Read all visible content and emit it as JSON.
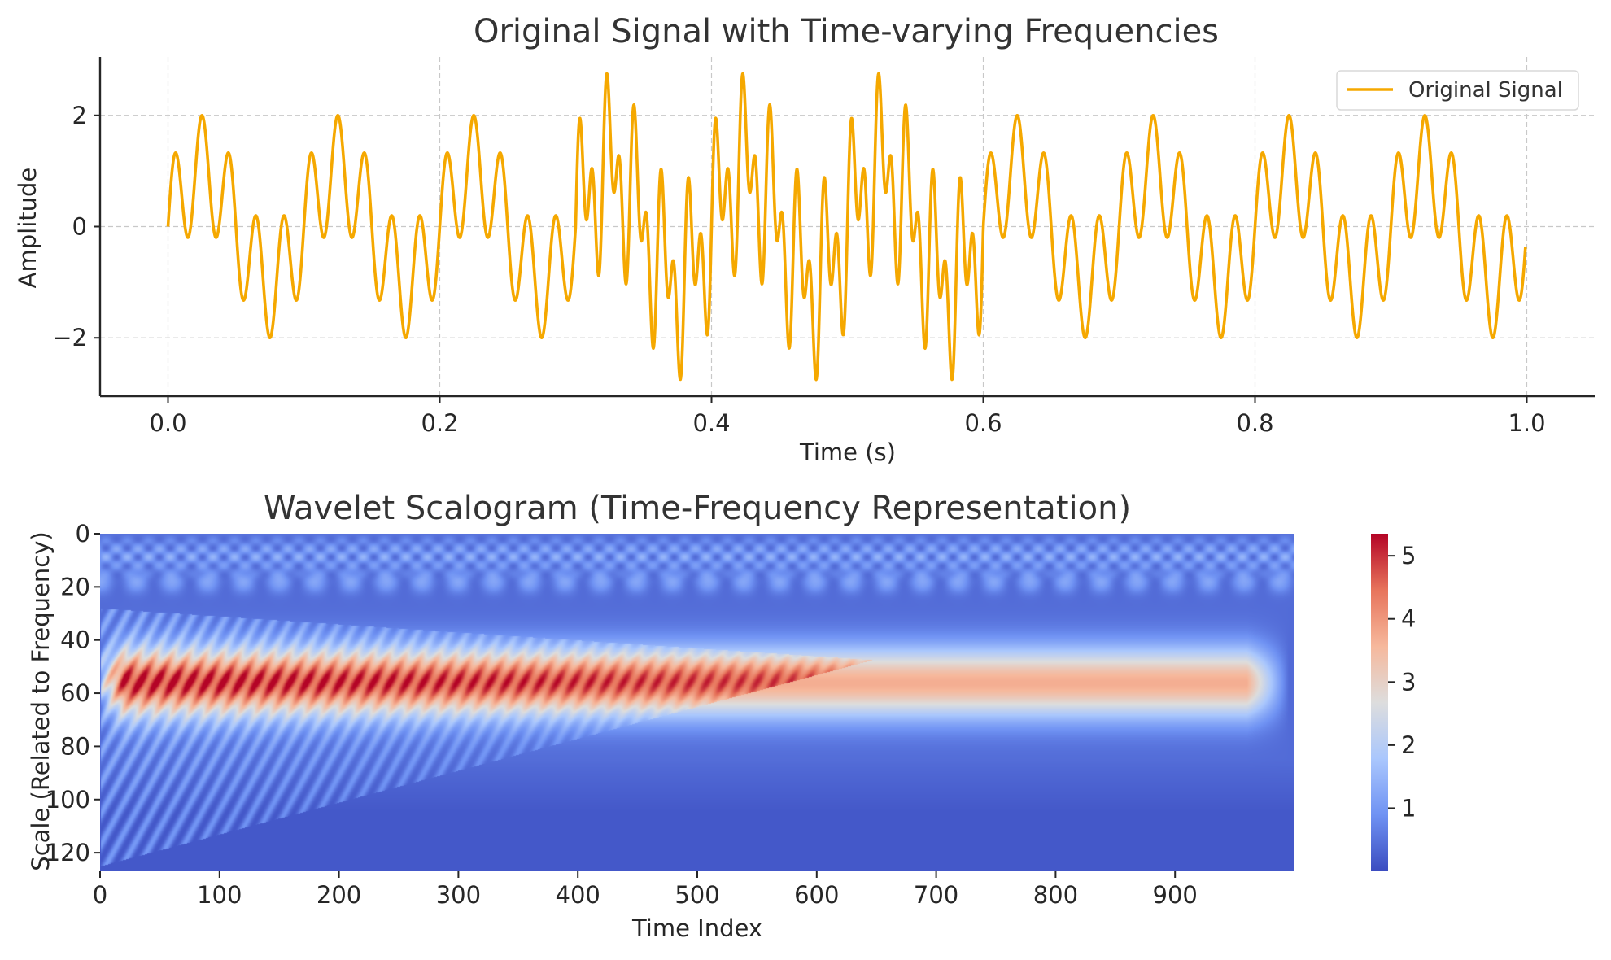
{
  "chart_data": [
    {
      "type": "line",
      "title": "Original Signal with Time-varying Frequencies",
      "xlabel": "Time (s)",
      "ylabel": "Amplitude",
      "xlim": [
        -0.05,
        1.05
      ],
      "ylim": [
        -3.05,
        3.05
      ],
      "xticks": [
        0.0,
        0.2,
        0.4,
        0.6,
        0.8,
        1.0
      ],
      "xtick_labels": [
        "0.0",
        "0.2",
        "0.4",
        "0.6",
        "0.8",
        "1.0"
      ],
      "yticks": [
        -2,
        0,
        2
      ],
      "ytick_labels": [
        "−2",
        "0",
        "2"
      ],
      "grid": true,
      "legend": "top-right",
      "series": [
        {
          "name": "Original Signal",
          "color": "#f5a800",
          "t_start": 0.0,
          "t_end": 0.999,
          "base_components": [
            {
              "frequency_hz": 10,
              "amplitude": 1
            },
            {
              "frequency_hz": 50,
              "amplitude": 1
            }
          ],
          "burst_components": [
            {
              "frequency_hz": 100,
              "amplitude": 1,
              "t_from": 0.3,
              "t_to": 0.6
            }
          ]
        }
      ]
    },
    {
      "type": "heatmap",
      "title": "Wavelet Scalogram (Time-Frequency Representation)",
      "xlabel": "Time Index",
      "ylabel": "Scale (Related to Frequency)",
      "x_range": [
        0,
        1000
      ],
      "y_range": [
        0,
        127
      ],
      "xticks": [
        0,
        100,
        200,
        300,
        400,
        500,
        600,
        700,
        800,
        900
      ],
      "yticks": [
        0,
        20,
        40,
        60,
        80,
        100,
        120
      ],
      "colormap": "coolwarm",
      "colorbar": {
        "min": 0.0,
        "max": 5.35,
        "ticks": [
          1,
          2,
          3,
          4,
          5
        ],
        "stops": [
          "#3b4cc0",
          "#6f92f3",
          "#aac7fd",
          "#dddddd",
          "#f6b89c",
          "#e7745b",
          "#b40426"
        ]
      },
      "features": [
        {
          "region": "stable band",
          "scale_center": 56,
          "value": 3.7,
          "time_from": 0,
          "time_to": 960
        },
        {
          "region": "peak band",
          "scale_center": 55,
          "value": 5.2,
          "time_from": 50,
          "time_to": 650
        },
        {
          "region": "low background",
          "scale_from": 85,
          "scale_to": 127,
          "value": 0.6
        }
      ]
    }
  ]
}
